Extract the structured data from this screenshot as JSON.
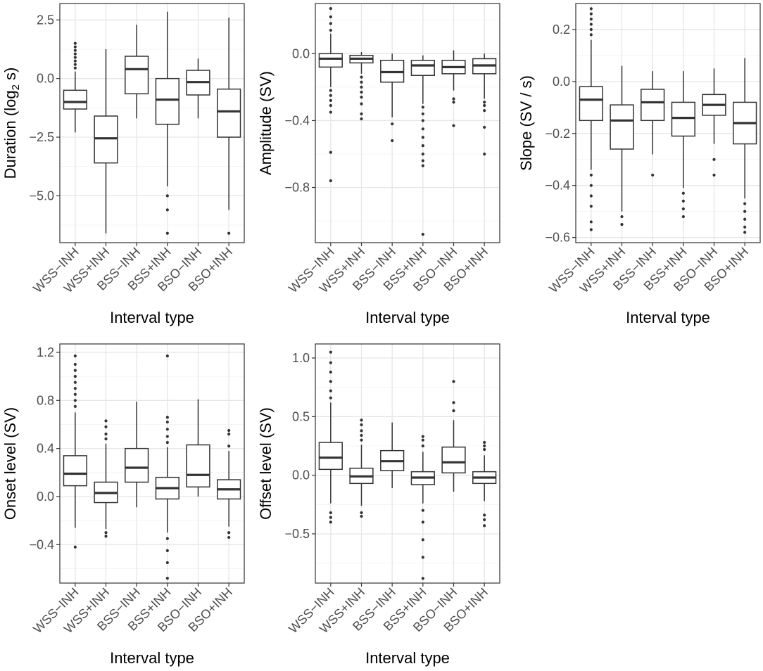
{
  "chart_data": [
    {
      "type": "box",
      "ylabel": "Duration (log",
      "ylabel_sub": "2",
      "ylabel_suffix": " s)",
      "xlabel": "Interval type",
      "categories": [
        "WSS−INH",
        "WSS+INH",
        "BSS−INH",
        "BSS+INH",
        "BSO−INH",
        "BSO+INH"
      ],
      "yticks": [
        2.5,
        0.0,
        -2.5,
        -5.0
      ],
      "ytick_labels": [
        "2.5",
        "0.0",
        "−2.5",
        "−5.0"
      ],
      "ylim": [
        -7.0,
        3.2
      ],
      "boxes": [
        {
          "whisker_low": -2.3,
          "q1": -1.3,
          "median": -1.0,
          "q3": -0.5,
          "whisker_high": 0.3,
          "outliers": [
            0.45,
            0.6,
            0.75,
            0.9,
            1.05,
            1.2,
            1.35,
            1.5
          ]
        },
        {
          "whisker_low": -6.6,
          "q1": -3.6,
          "median": -2.55,
          "q3": -1.6,
          "whisker_high": 1.25,
          "outliers": []
        },
        {
          "whisker_low": -1.7,
          "q1": -0.65,
          "median": 0.4,
          "q3": 0.95,
          "whisker_high": 2.3,
          "outliers": []
        },
        {
          "whisker_low": -4.6,
          "q1": -1.95,
          "median": -0.9,
          "q3": 0.0,
          "whisker_high": 2.85,
          "outliers": [
            -5.0,
            -5.6,
            -6.6
          ]
        },
        {
          "whisker_low": -1.7,
          "q1": -0.7,
          "median": -0.15,
          "q3": 0.35,
          "whisker_high": 0.85,
          "outliers": []
        },
        {
          "whisker_low": -5.6,
          "q1": -2.5,
          "median": -1.4,
          "q3": -0.45,
          "whisker_high": 2.6,
          "outliers": [
            -6.6
          ]
        }
      ]
    },
    {
      "type": "box",
      "ylabel": "Amplitude (SV)",
      "xlabel": "Interval type",
      "categories": [
        "WSS−INH",
        "WSS+INH",
        "BSS−INH",
        "BSS+INH",
        "BSO−INH",
        "BSO+INH"
      ],
      "yticks": [
        0.0,
        -0.4,
        -0.8
      ],
      "ytick_labels": [
        "0.0",
        "−0.4",
        "−0.8"
      ],
      "ylim": [
        -1.13,
        0.3
      ],
      "boxes": [
        {
          "whisker_low": -0.2,
          "q1": -0.08,
          "median": -0.03,
          "q3": 0.0,
          "whisker_high": 0.12,
          "outliers": [
            0.14,
            0.18,
            0.22,
            0.27,
            -0.22,
            -0.25,
            -0.28,
            -0.31,
            -0.35,
            -0.59,
            -0.76
          ]
        },
        {
          "whisker_low": -0.12,
          "q1": -0.055,
          "median": -0.03,
          "q3": -0.01,
          "whisker_high": 0.01,
          "outliers": [
            -0.14,
            -0.17,
            -0.2,
            -0.23,
            -0.26,
            -0.3,
            -0.36,
            -0.39
          ]
        },
        {
          "whisker_low": -0.38,
          "q1": -0.17,
          "median": -0.11,
          "q3": -0.04,
          "whisker_high": 0.0,
          "outliers": [
            -0.42,
            -0.52
          ]
        },
        {
          "whisker_low": -0.3,
          "q1": -0.13,
          "median": -0.07,
          "q3": -0.04,
          "whisker_high": -0.01,
          "outliers": [
            -0.32,
            -0.36,
            -0.4,
            -0.45,
            -0.5,
            -0.55,
            -0.6,
            -0.64,
            -0.67,
            -1.08
          ]
        },
        {
          "whisker_low": -0.22,
          "q1": -0.12,
          "median": -0.08,
          "q3": -0.04,
          "whisker_high": 0.02,
          "outliers": [
            -0.27,
            -0.29,
            -0.43
          ]
        },
        {
          "whisker_low": -0.27,
          "q1": -0.12,
          "median": -0.07,
          "q3": -0.03,
          "whisker_high": 0.0,
          "outliers": [
            -0.29,
            -0.31,
            -0.34,
            -0.44,
            -0.6
          ]
        }
      ]
    },
    {
      "type": "box",
      "ylabel": "Slope (SV / s)",
      "xlabel": "Interval type",
      "categories": [
        "WSS−INH",
        "WSS+INH",
        "BSS−INH",
        "BSS+INH",
        "BSO−INH",
        "BSO+INH"
      ],
      "yticks": [
        0.2,
        0.0,
        -0.2,
        -0.4,
        -0.6
      ],
      "ytick_labels": [
        "0.2",
        "0.0",
        "−0.2",
        "−0.4",
        "−0.6"
      ],
      "ylim": [
        -0.62,
        0.3
      ],
      "boxes": [
        {
          "whisker_low": -0.34,
          "q1": -0.15,
          "median": -0.07,
          "q3": -0.02,
          "whisker_high": 0.16,
          "outliers": [
            0.18,
            0.2,
            0.22,
            0.24,
            0.26,
            0.28,
            -0.36,
            -0.4,
            -0.44,
            -0.48,
            -0.54,
            -0.57
          ]
        },
        {
          "whisker_low": -0.5,
          "q1": -0.26,
          "median": -0.15,
          "q3": -0.09,
          "whisker_high": 0.06,
          "outliers": [
            -0.52,
            -0.55
          ]
        },
        {
          "whisker_low": -0.28,
          "q1": -0.15,
          "median": -0.08,
          "q3": -0.03,
          "whisker_high": 0.04,
          "outliers": [
            -0.36
          ]
        },
        {
          "whisker_low": -0.41,
          "q1": -0.21,
          "median": -0.14,
          "q3": -0.08,
          "whisker_high": 0.04,
          "outliers": [
            -0.43,
            -0.46,
            -0.49,
            -0.52
          ]
        },
        {
          "whisker_low": -0.24,
          "q1": -0.13,
          "median": -0.09,
          "q3": -0.05,
          "whisker_high": 0.05,
          "outliers": [
            -0.3,
            -0.36
          ]
        },
        {
          "whisker_low": -0.45,
          "q1": -0.24,
          "median": -0.16,
          "q3": -0.08,
          "whisker_high": 0.09,
          "outliers": [
            -0.47,
            -0.5,
            -0.53,
            -0.56,
            -0.58
          ]
        }
      ]
    },
    {
      "type": "box",
      "ylabel": "Onset level (SV)",
      "xlabel": "Interval type",
      "categories": [
        "WSS−INH",
        "WSS+INH",
        "BSS−INH",
        "BSS+INH",
        "BSO−INH",
        "BSO+INH"
      ],
      "yticks": [
        1.2,
        0.8,
        0.4,
        0.0,
        -0.4
      ],
      "ytick_labels": [
        "1.2",
        "0.8",
        "0.4",
        "0.0",
        "−0.4"
      ],
      "ylim": [
        -0.72,
        1.27
      ],
      "boxes": [
        {
          "whisker_low": -0.26,
          "q1": 0.09,
          "median": 0.19,
          "q3": 0.34,
          "whisker_high": 0.7,
          "outliers": [
            0.75,
            0.8,
            0.85,
            0.9,
            0.95,
            1.0,
            1.05,
            1.1,
            1.17,
            -0.42
          ]
        },
        {
          "whisker_low": -0.27,
          "q1": -0.05,
          "median": 0.03,
          "q3": 0.12,
          "whisker_high": 0.44,
          "outliers": [
            0.48,
            0.52,
            0.58,
            0.63,
            -0.3,
            -0.33
          ]
        },
        {
          "whisker_low": -0.09,
          "q1": 0.12,
          "median": 0.24,
          "q3": 0.4,
          "whisker_high": 0.79,
          "outliers": []
        },
        {
          "whisker_low": -0.3,
          "q1": -0.02,
          "median": 0.07,
          "q3": 0.16,
          "whisker_high": 0.41,
          "outliers": [
            0.45,
            0.5,
            0.56,
            0.62,
            0.66,
            1.17,
            -0.35,
            -0.45,
            -0.55,
            -0.68
          ]
        },
        {
          "whisker_low": 0.0,
          "q1": 0.08,
          "median": 0.18,
          "q3": 0.43,
          "whisker_high": 0.81,
          "outliers": []
        },
        {
          "whisker_low": -0.25,
          "q1": -0.02,
          "median": 0.06,
          "q3": 0.14,
          "whisker_high": 0.38,
          "outliers": [
            0.42,
            0.52,
            0.55,
            -0.3,
            -0.34
          ]
        }
      ]
    },
    {
      "type": "box",
      "ylabel": "Offset level (SV)",
      "xlabel": "Interval type",
      "categories": [
        "WSS−INH",
        "WSS+INH",
        "BSS−INH",
        "BSS+INH",
        "BSO−INH",
        "BSO+INH"
      ],
      "yticks": [
        1.0,
        0.5,
        0.0,
        -0.5
      ],
      "ytick_labels": [
        "1.0",
        "0.5",
        "0.0",
        "−0.5"
      ],
      "ylim": [
        -0.92,
        1.12
      ],
      "boxes": [
        {
          "whisker_low": -0.24,
          "q1": 0.05,
          "median": 0.15,
          "q3": 0.28,
          "whisker_high": 0.62,
          "outliers": [
            0.66,
            0.72,
            0.8,
            0.88,
            0.96,
            1.05,
            -0.32,
            -0.36,
            -0.4
          ]
        },
        {
          "whisker_low": -0.26,
          "q1": -0.07,
          "median": -0.01,
          "q3": 0.06,
          "whisker_high": 0.26,
          "outliers": [
            0.3,
            0.34,
            0.38,
            0.43,
            0.47,
            -0.32,
            -0.35
          ]
        },
        {
          "whisker_low": -0.11,
          "q1": 0.04,
          "median": 0.12,
          "q3": 0.21,
          "whisker_high": 0.45,
          "outliers": []
        },
        {
          "whisker_low": -0.24,
          "q1": -0.08,
          "median": -0.02,
          "q3": 0.03,
          "whisker_high": 0.2,
          "outliers": [
            0.25,
            0.3,
            0.33,
            -0.3,
            -0.4,
            -0.55,
            -0.7,
            -0.88
          ]
        },
        {
          "whisker_low": -0.14,
          "q1": 0.02,
          "median": 0.11,
          "q3": 0.24,
          "whisker_high": 0.47,
          "outliers": [
            0.55,
            0.62,
            0.8
          ]
        },
        {
          "whisker_low": -0.22,
          "q1": -0.07,
          "median": -0.02,
          "q3": 0.03,
          "whisker_high": 0.17,
          "outliers": [
            0.22,
            0.25,
            0.28,
            -0.34,
            -0.38,
            -0.43
          ]
        }
      ]
    }
  ]
}
